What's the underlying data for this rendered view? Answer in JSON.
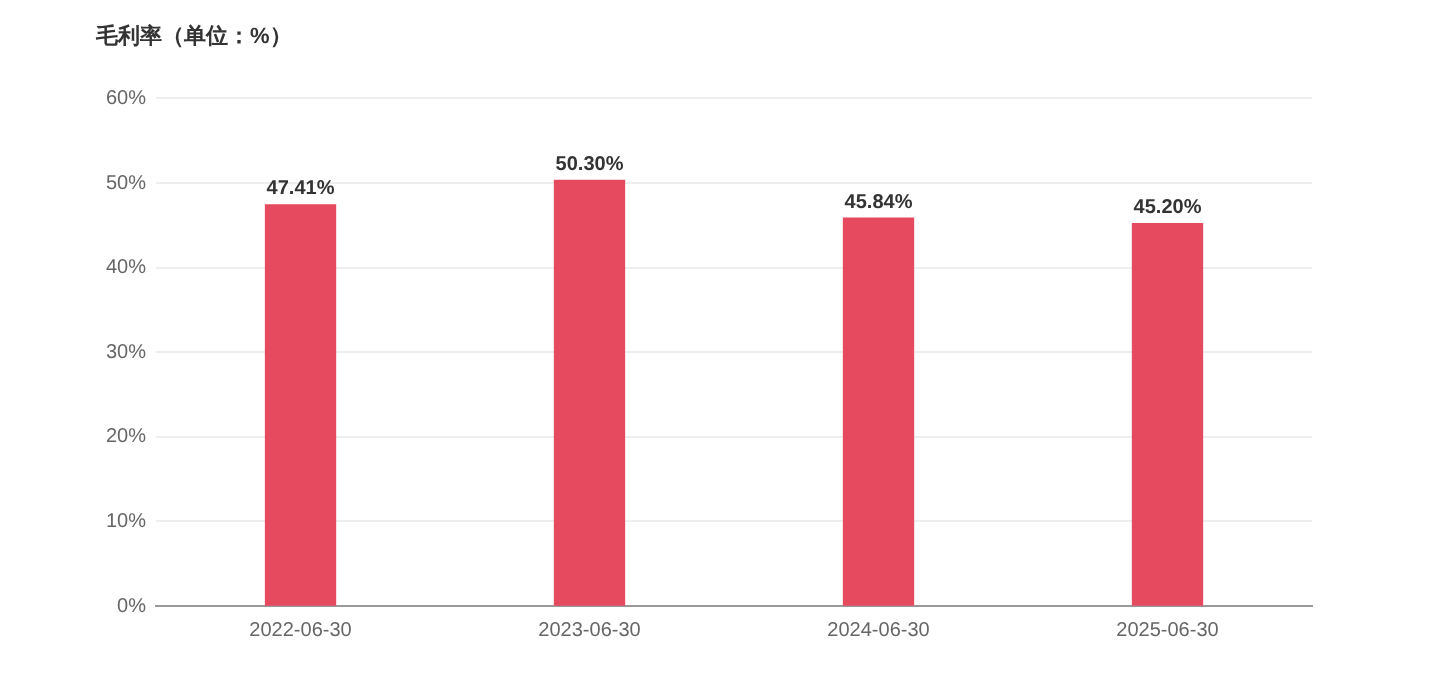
{
  "chart_data": {
    "type": "bar",
    "title": "毛利率（单位：%）",
    "categories": [
      "2022-06-30",
      "2023-06-30",
      "2024-06-30",
      "2025-06-30"
    ],
    "values": [
      47.41,
      50.3,
      45.84,
      45.2
    ],
    "value_labels": [
      "47.41%",
      "50.30%",
      "45.84%",
      "45.20%"
    ],
    "color": "#e64a5e",
    "ylim": [
      0,
      60
    ],
    "yticks": [
      {
        "value": 0,
        "label": "0%"
      },
      {
        "value": 10,
        "label": "10%"
      },
      {
        "value": 20,
        "label": "20%"
      },
      {
        "value": 30,
        "label": "30%"
      },
      {
        "value": 40,
        "label": "40%"
      },
      {
        "value": 50,
        "label": "50%"
      },
      {
        "value": 60,
        "label": "60%"
      }
    ],
    "grid": "y",
    "legend": false
  }
}
